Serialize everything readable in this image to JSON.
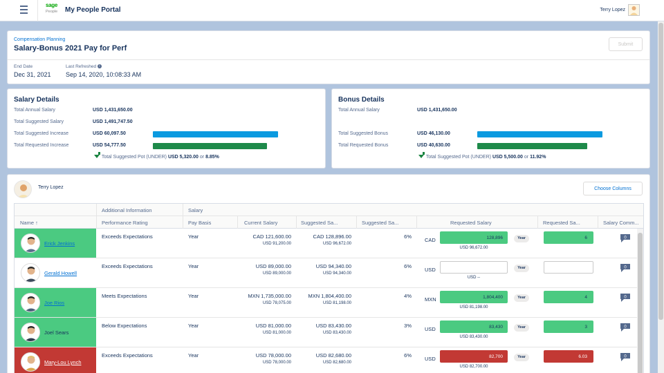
{
  "header": {
    "logo_text": "sage",
    "logo_sub": "People",
    "app_title": "My People Portal",
    "user_name": "Terry Lopez"
  },
  "plan": {
    "eyebrow": "Compensation Planning",
    "title": "Salary-Bonus 2021 Pay for Perf",
    "submit_label": "Submit",
    "end_date_label": "End Date",
    "end_date": "Dec 31, 2021",
    "last_refreshed_label": "Last Refreshed",
    "last_refreshed": "Sep 14, 2020, 10:08:33 AM"
  },
  "salary_details": {
    "title": "Salary Details",
    "total_annual_label": "Total Annual Salary",
    "total_annual": "USD 1,431,650.00",
    "total_suggested_label": "Total Suggested Salary",
    "total_suggested": "USD 1,491,747.50",
    "suggested_increase_label": "Total Suggested Increase",
    "suggested_increase": "USD 60,097.50",
    "requested_increase_label": "Total Requested Increase",
    "requested_increase": "USD 54,777.50",
    "suggested_bar_fraction": 1.0,
    "requested_bar_fraction": 0.91,
    "pot_label": "Total Suggested Pot (UNDER)",
    "pot_amount": "USD 5,320.00",
    "pot_or": "or",
    "pot_pct": "8.85%"
  },
  "bonus_details": {
    "title": "Bonus Details",
    "total_annual_label": "Total Annual Salary",
    "total_annual": "USD 1,431,650.00",
    "suggested_label": "Total Suggested Bonus",
    "suggested": "USD 46,130.00",
    "requested_label": "Total Requested Bonus",
    "requested": "USD 40,630.00",
    "suggested_bar_fraction": 1.0,
    "requested_bar_fraction": 0.88,
    "pot_label": "Total Suggested Pot (UNDER)",
    "pot_amount": "USD 5,500.00",
    "pot_or": "or",
    "pot_pct": "11.92%"
  },
  "team": {
    "manager_name": "Terry Lopez",
    "choose_columns_label": "Choose Columns",
    "group_headers": {
      "additional": "Additional Information",
      "salary": "Salary"
    },
    "columns": {
      "name": "Name",
      "sort_indicator": "↑",
      "rating": "Performance Rating",
      "pay_basis": "Pay Basis",
      "current_salary": "Current Salary",
      "suggested_salary": "Suggested Sa...",
      "suggested_pct": "Suggested Sa...",
      "requested_salary": "Requested Salary",
      "requested_pct": "Requested Sa...",
      "comments": "Salary Comm..."
    },
    "rows": [
      {
        "name": "Erick Jenkins",
        "status": "green",
        "link": true,
        "rating": "Exceeds Expectations",
        "pay_basis": "Year",
        "current": "CAD 121,600.00",
        "current_usd": "USD 91,200.00",
        "suggested": "CAD 128,896.00",
        "suggested_usd": "USD 96,672.00",
        "suggested_pct": "6%",
        "currency": "CAD",
        "requested": "128,896",
        "requested_state": "green",
        "year": "Year",
        "requested_usd": "USD 96,672.00",
        "requested_pct": "6",
        "pct_state": "green",
        "comments": "0"
      },
      {
        "name": "Gerald Howell",
        "status": "none",
        "link": true,
        "rating": "Exceeds Expectations",
        "pay_basis": "Year",
        "current": "USD 89,000.00",
        "current_usd": "USD 89,000.00",
        "suggested": "USD 94,340.00",
        "suggested_usd": "USD 94,340.00",
        "suggested_pct": "6%",
        "currency": "USD",
        "requested": "",
        "requested_state": "empty",
        "year": "Year",
        "requested_usd": "USD --",
        "requested_pct": "",
        "pct_state": "empty",
        "comments": "0"
      },
      {
        "name": "Joe Rios",
        "status": "green",
        "link": true,
        "rating": "Meets Expectations",
        "pay_basis": "Year",
        "current": "MXN 1,735,000.00",
        "current_usd": "USD 78,075.00",
        "suggested": "MXN 1,804,400.00",
        "suggested_usd": "USD 81,198.00",
        "suggested_pct": "4%",
        "currency": "MXN",
        "requested": "1,804,400",
        "requested_state": "green",
        "year": "Year",
        "requested_usd": "USD 81,198.00",
        "requested_pct": "4",
        "pct_state": "green",
        "comments": "0"
      },
      {
        "name": "Joel Sears",
        "status": "green",
        "link": false,
        "rating": "Below Expectations",
        "pay_basis": "Year",
        "current": "USD 81,000.00",
        "current_usd": "USD 81,000.00",
        "suggested": "USD 83,430.00",
        "suggested_usd": "USD 83,430.00",
        "suggested_pct": "3%",
        "currency": "USD",
        "requested": "83,430",
        "requested_state": "green",
        "year": "Year",
        "requested_usd": "USD 83,430.00",
        "requested_pct": "3",
        "pct_state": "green",
        "comments": "0"
      },
      {
        "name": "Mary-Lou Lynch",
        "status": "red",
        "link": true,
        "rating": "Exceeds Expectations",
        "pay_basis": "Year",
        "current": "USD 78,000.00",
        "current_usd": "USD 78,000.00",
        "suggested": "USD 82,680.00",
        "suggested_usd": "USD 82,680.00",
        "suggested_pct": "6%",
        "currency": "USD",
        "requested": "82,700",
        "requested_state": "red",
        "year": "Year",
        "requested_usd": "USD 82,700.00",
        "requested_pct": "6.03",
        "pct_state": "red",
        "comments": "0"
      }
    ]
  },
  "colors": {
    "green_row": "#4bca81",
    "red_row": "#c23934",
    "blue_bar": "#0b9ae0",
    "green_bar": "#1e8a4a",
    "link": "#0070d2"
  },
  "icons": [
    "menu-icon",
    "info-icon",
    "arrow-down-icon",
    "comment-icon",
    "sort-up-icon"
  ]
}
